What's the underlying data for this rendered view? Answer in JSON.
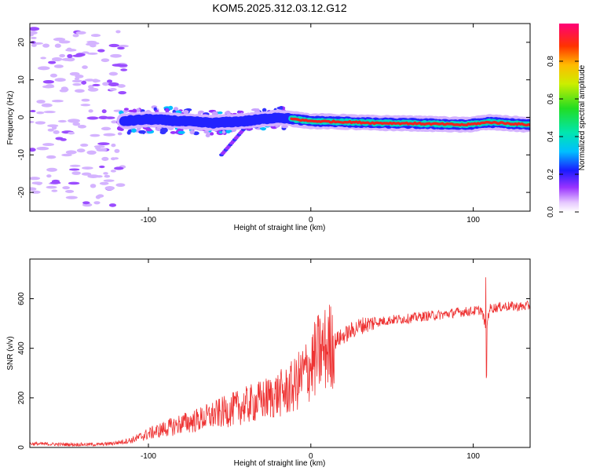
{
  "chart_data": [
    {
      "type": "heatmap",
      "title": "KOM5.2025.312.03.12.G12",
      "xlabel": "Height of straight line (km)",
      "ylabel": "Frequency (Hz)",
      "xlim": [
        -173,
        135
      ],
      "ylim": [
        -25,
        25
      ],
      "xticks": [
        -100,
        0,
        100
      ],
      "yticks": [
        -20,
        -10,
        0,
        10,
        20
      ],
      "colorbar": {
        "label": "Normalized spectral amplitude",
        "range": [
          0,
          1
        ],
        "ticks": [
          "0.0",
          "0.2",
          "0.4",
          "0.6",
          "0.8"
        ]
      },
      "description_points": {
        "ridge_x": [
          -115,
          -100,
          -80,
          -60,
          -40,
          -20,
          0,
          20,
          40,
          60,
          80,
          95,
          110,
          135
        ],
        "ridge_freq": [
          -1,
          -0.5,
          -1,
          -1.5,
          -1,
          0,
          -1,
          -1.2,
          -1.5,
          -1.6,
          -1.8,
          -2,
          -1.3,
          -2
        ]
      }
    },
    {
      "type": "line",
      "xlabel": "Height of straight line (km)",
      "ylabel": "SNR (v/v)",
      "xlim": [
        -173,
        135
      ],
      "ylim": [
        0,
        760
      ],
      "xticks": [
        -100,
        0,
        100
      ],
      "yticks": [
        0,
        200,
        400,
        600
      ],
      "series": [
        {
          "name": "SNR",
          "color": "#ee3333",
          "x": [
            -173,
            -150,
            -130,
            -120,
            -110,
            -100,
            -90,
            -80,
            -70,
            -60,
            -50,
            -40,
            -30,
            -20,
            -15,
            -10,
            -5,
            0,
            5,
            10,
            15,
            20,
            25,
            30,
            40,
            50,
            60,
            70,
            80,
            90,
            100,
            105,
            108,
            110,
            115,
            120,
            130,
            135
          ],
          "values": [
            15,
            12,
            12,
            18,
            30,
            55,
            75,
            95,
            110,
            130,
            150,
            170,
            190,
            215,
            225,
            250,
            290,
            330,
            380,
            400,
            430,
            450,
            470,
            490,
            505,
            515,
            520,
            530,
            535,
            545,
            550,
            555,
            480,
            560,
            565,
            570,
            568,
            572
          ]
        }
      ]
    }
  ]
}
